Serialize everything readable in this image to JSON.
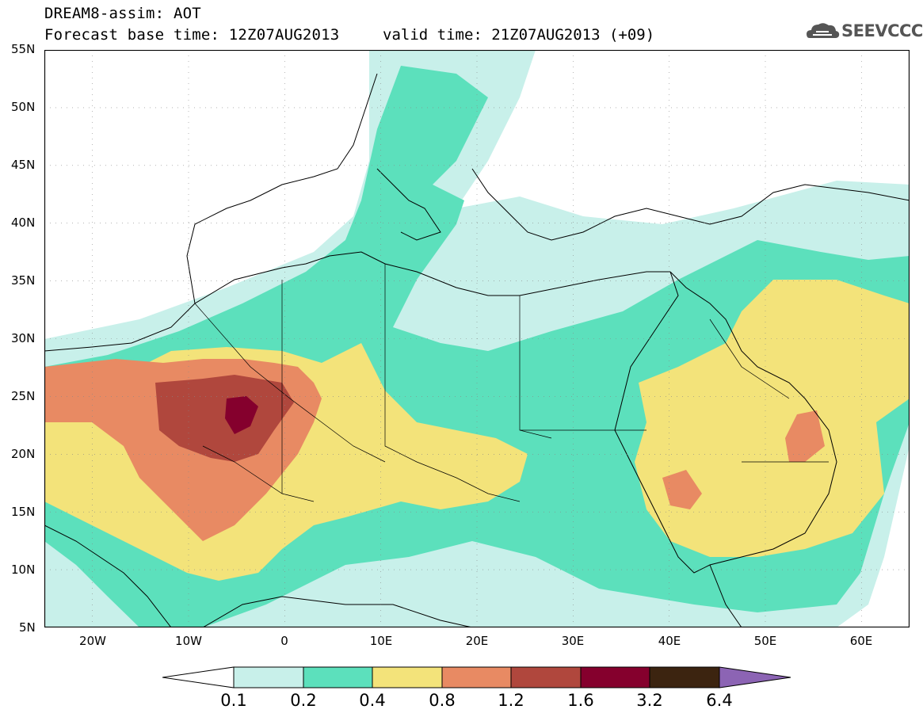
{
  "title": {
    "line1": "DREAM8-assim: AOT",
    "line2": "Forecast base time: 12Z07AUG2013",
    "valid": "valid time: 21Z07AUG2013 (+09)"
  },
  "logo_text": "SEEVCCC",
  "map": {
    "lat_labels": [
      "55N",
      "50N",
      "45N",
      "40N",
      "35N",
      "30N",
      "25N",
      "20N",
      "15N",
      "10N",
      "5N"
    ],
    "lon_labels": [
      "20W",
      "10W",
      "0",
      "10E",
      "20E",
      "30E",
      "40E",
      "50E",
      "60E"
    ],
    "lon_range": [
      -25,
      65
    ],
    "lat_range": [
      5,
      55
    ]
  },
  "colorbar": {
    "labels": [
      "0.1",
      "0.2",
      "0.4",
      "0.8",
      "1.2",
      "1.6",
      "3.2",
      "6.4"
    ],
    "colors": [
      "#c8f0ea",
      "#5ce0bc",
      "#f3e37a",
      "#e88a63",
      "#b0473d",
      "#85002d",
      "#3c2410",
      "#8c64b4"
    ]
  }
}
